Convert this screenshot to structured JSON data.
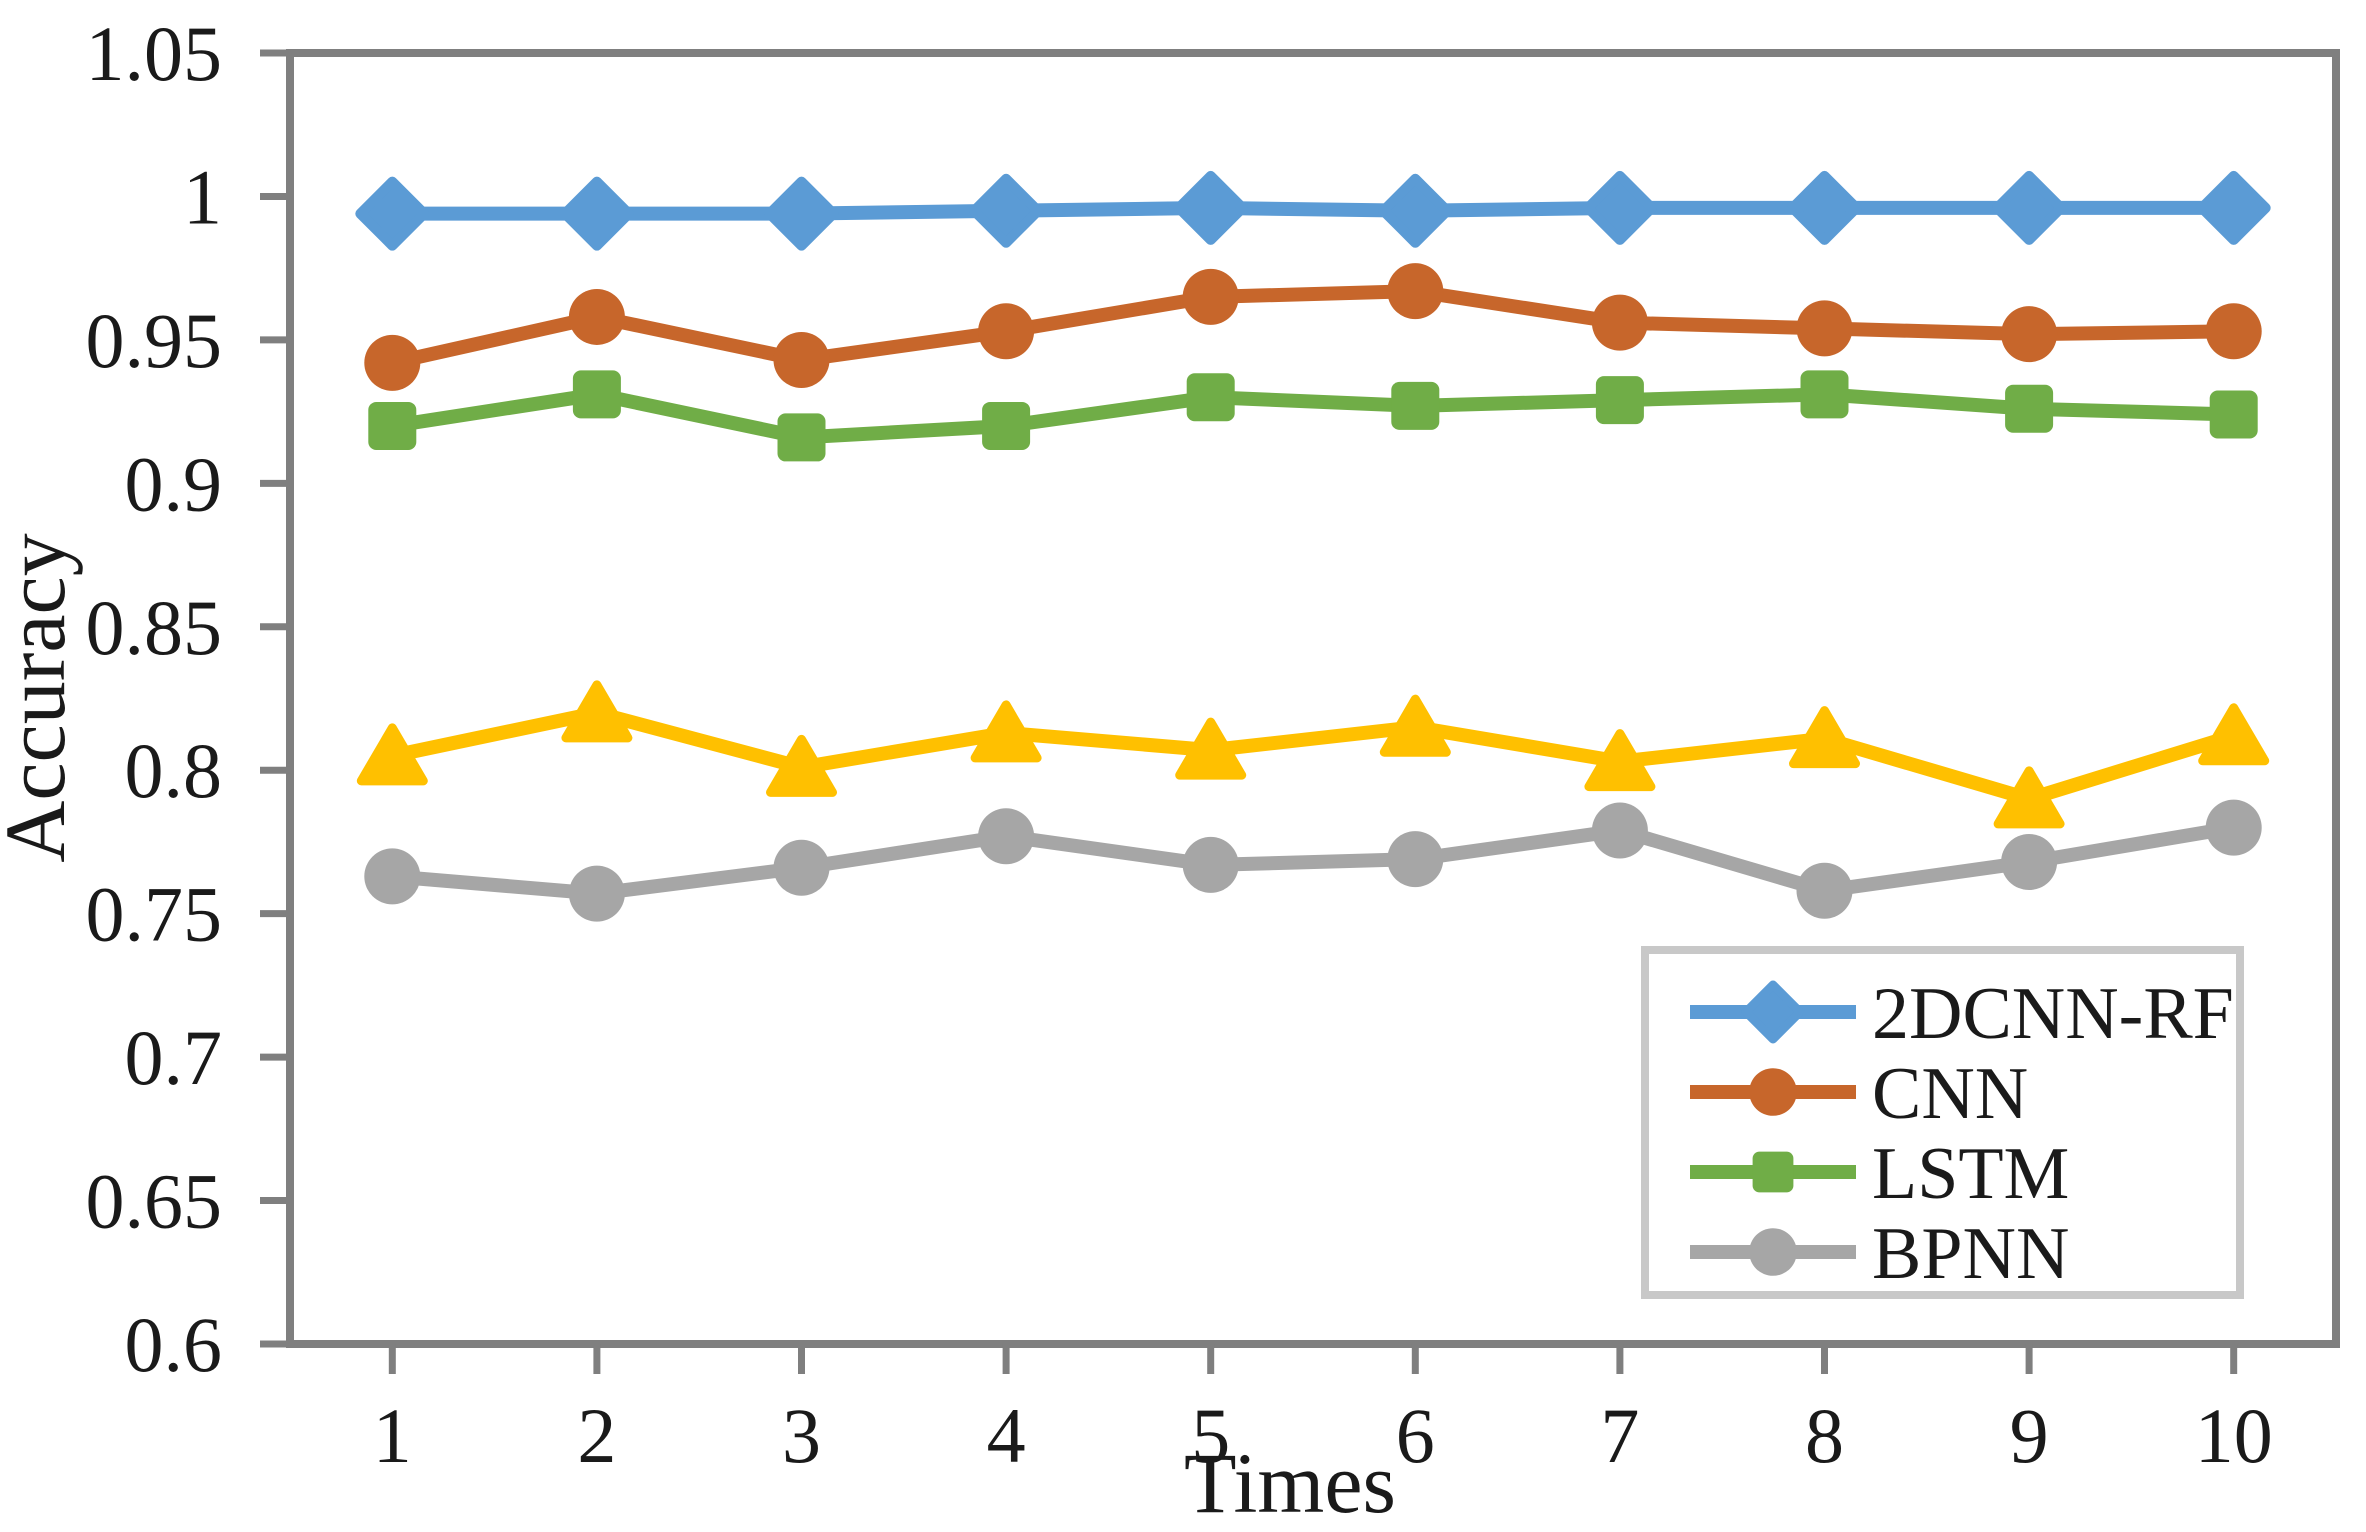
{
  "figure": {
    "background": "#ffffff",
    "axis_color": "#7f7f7f",
    "text_color": "#1a1a1a",
    "legend_border_color": "#c8c8c8"
  },
  "chart_data": {
    "type": "line",
    "title": "",
    "xlabel": "Times",
    "ylabel": "Accuracy",
    "x_categories": [
      "1",
      "2",
      "3",
      "4",
      "5",
      "6",
      "7",
      "8",
      "9",
      "10"
    ],
    "y_ticks": [
      {
        "label": "1.05",
        "value": 1.05
      },
      {
        "label": "1",
        "value": 1.0
      },
      {
        "label": "0.95",
        "value": 0.95
      },
      {
        "label": "0.9",
        "value": 0.9
      },
      {
        "label": "0.85",
        "value": 0.85
      },
      {
        "label": "0.8",
        "value": 0.8
      },
      {
        "label": "0.75",
        "value": 0.75
      },
      {
        "label": "0.7",
        "value": 0.7
      },
      {
        "label": "0.65",
        "value": 0.65
      },
      {
        "label": "0.6",
        "value": 0.6
      }
    ],
    "ylim": [
      0.6,
      1.05
    ],
    "grid": false,
    "legend_position": "inside-bottom-right",
    "series": [
      {
        "name": "2DCNN-RF",
        "marker": "diamond",
        "color": "#5B9BD5",
        "in_legend": true,
        "values": [
          0.994,
          0.994,
          0.994,
          0.995,
          0.996,
          0.995,
          0.996,
          0.996,
          0.996,
          0.996
        ]
      },
      {
        "name": "CNN",
        "marker": "circle",
        "color": "#C7662B",
        "in_legend": true,
        "values": [
          0.942,
          0.958,
          0.943,
          0.953,
          0.965,
          0.967,
          0.956,
          0.954,
          0.952,
          0.953
        ]
      },
      {
        "name": "LSTM",
        "marker": "square",
        "color": "#70AD47",
        "in_legend": true,
        "values": [
          0.92,
          0.931,
          0.916,
          0.92,
          0.93,
          0.927,
          0.929,
          0.931,
          0.926,
          0.924
        ]
      },
      {
        "name": "",
        "marker": "triangle",
        "color": "#FFC000",
        "in_legend": false,
        "values": [
          0.805,
          0.82,
          0.801,
          0.813,
          0.807,
          0.815,
          0.803,
          0.811,
          0.79,
          0.812
        ]
      },
      {
        "name": "BPNN",
        "marker": "circle",
        "color": "#A6A6A6",
        "in_legend": true,
        "values": [
          0.763,
          0.757,
          0.766,
          0.777,
          0.767,
          0.769,
          0.779,
          0.758,
          0.768,
          0.78
        ]
      }
    ],
    "legend_entries": [
      {
        "label": "2DCNN-RF",
        "series": 0
      },
      {
        "label": "CNN",
        "series": 1
      },
      {
        "label": "LSTM",
        "series": 2
      },
      {
        "label": "BPNN",
        "series": 4
      }
    ]
  }
}
